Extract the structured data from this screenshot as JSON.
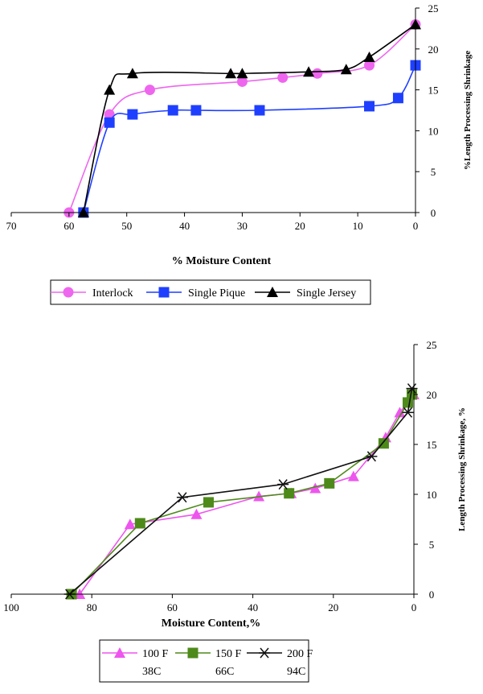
{
  "chart_data": [
    {
      "type": "line",
      "xlabel": "% Moisture Content",
      "ylabel": "%Length Processing Shrinkage",
      "xlim": [
        70,
        0
      ],
      "ylim": [
        0,
        25
      ],
      "xticks": [
        70,
        60,
        50,
        40,
        30,
        20,
        10,
        0
      ],
      "yticks": [
        0,
        5,
        10,
        15,
        20,
        25
      ],
      "y_axis_side": "right",
      "grid": false,
      "legend_position": "bottom",
      "series": [
        {
          "name": "Interlock",
          "color": "#ee66ee",
          "marker": "circle",
          "points": [
            [
              60,
              0
            ],
            [
              53,
              12
            ],
            [
              46,
              15
            ],
            [
              30,
              16
            ],
            [
              23,
              16.5
            ],
            [
              17,
              17
            ],
            [
              8,
              18
            ],
            [
              0,
              23
            ]
          ]
        },
        {
          "name": "Single Pique",
          "color": "#1f3fff",
          "marker": "square",
          "points": [
            [
              57.5,
              0
            ],
            [
              53,
              11
            ],
            [
              49,
              12
            ],
            [
              42,
              12.5
            ],
            [
              38,
              12.5
            ],
            [
              27,
              12.5
            ],
            [
              8,
              13
            ],
            [
              3,
              14
            ],
            [
              0,
              18
            ]
          ]
        },
        {
          "name": "Single Jersey",
          "color": "#000000",
          "marker": "triangle",
          "points": [
            [
              57.5,
              0
            ],
            [
              53,
              15
            ],
            [
              49,
              17
            ],
            [
              32,
              17
            ],
            [
              30,
              17
            ],
            [
              18.5,
              17.2
            ],
            [
              12,
              17.5
            ],
            [
              8,
              19
            ],
            [
              0,
              23
            ]
          ]
        }
      ]
    },
    {
      "type": "line",
      "xlabel": "Moisture Content,%",
      "ylabel": "Length Processing Shrinkage, %",
      "xlim": [
        100,
        0
      ],
      "ylim": [
        0,
        25
      ],
      "xticks": [
        100,
        80,
        60,
        40,
        20,
        0
      ],
      "yticks": [
        0,
        5,
        10,
        15,
        20,
        25
      ],
      "y_axis_side": "right",
      "grid": false,
      "legend_position": "bottom",
      "series": [
        {
          "name": "100 F",
          "sublabel": "38C",
          "color": "#ee55ee",
          "marker": "triangle",
          "points": [
            [
              83,
              0
            ],
            [
              70.5,
              7
            ],
            [
              54,
              8
            ],
            [
              38.5,
              9.8
            ],
            [
              30.5,
              10.1
            ],
            [
              24.5,
              10.6
            ],
            [
              15,
              11.8
            ],
            [
              7,
              15.7
            ],
            [
              3.5,
              18.2
            ],
            [
              0,
              20
            ]
          ]
        },
        {
          "name": "150 F",
          "sublabel": "66C",
          "color": "#4e8a1a",
          "marker": "square",
          "points": [
            [
              85,
              0
            ],
            [
              68,
              7.1
            ],
            [
              51,
              9.2
            ],
            [
              31,
              10.1
            ],
            [
              21,
              11.1
            ],
            [
              7.5,
              15.1
            ],
            [
              1.5,
              19.2
            ],
            [
              0.5,
              20
            ]
          ]
        },
        {
          "name": "200 F",
          "sublabel": "94C",
          "color": "#111111",
          "marker": "asterisk",
          "points": [
            [
              85.5,
              0
            ],
            [
              57.5,
              9.7
            ],
            [
              32.5,
              11
            ],
            [
              10.5,
              13.8
            ],
            [
              1.5,
              18.2
            ],
            [
              0.5,
              20.6
            ]
          ]
        }
      ]
    }
  ]
}
